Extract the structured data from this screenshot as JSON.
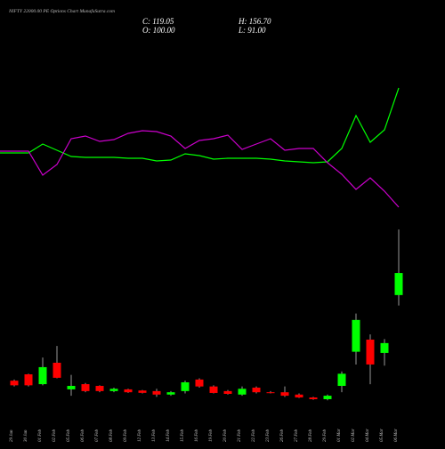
{
  "chart_data": {
    "type": "candlestick",
    "title": "NIFTY 22000.00 PE Options Chart MunafaSutra.com",
    "summary": {
      "close": "C: 119.05",
      "high": "H: 156.70",
      "open": "O: 100.00",
      "low": "L: 91.00"
    },
    "categories": [
      "29 Jan",
      "30 Jan",
      "01 Feb",
      "02 Feb",
      "05 Feb",
      "06 Feb",
      "07 Feb",
      "08 Feb",
      "09 Feb",
      "12 Feb",
      "13 Feb",
      "14 Feb",
      "15 Feb",
      "16 Feb",
      "19 Feb",
      "20 Feb",
      "21 Feb",
      "22 Feb",
      "23 Feb",
      "26 Feb",
      "27 Feb",
      "28 Feb",
      "29 Feb",
      "01 Mar",
      "02 Mar",
      "04 Mar",
      "05 Mar",
      "06 Mar"
    ],
    "open": [
      26,
      31.5,
      23,
      41.5,
      18.5,
      23,
      21.5,
      17,
      18.5,
      17.5,
      17,
      14,
      17,
      27,
      21,
      17,
      14,
      20,
      16,
      16,
      14,
      11.5,
      10,
      21.5,
      51,
      61.5,
      50,
      100
    ],
    "high": [
      27,
      32,
      46,
      56,
      31,
      24,
      22,
      20,
      19,
      18,
      19,
      17,
      26,
      28,
      22,
      18,
      21,
      21,
      17,
      21,
      15,
      12,
      14,
      34,
      84,
      66,
      62,
      156.7
    ],
    "low": [
      21,
      21,
      22,
      28,
      13,
      16,
      16,
      16,
      15.5,
      15,
      12,
      13,
      15,
      20,
      15,
      14,
      13,
      15,
      15,
      12,
      11,
      9.5,
      9,
      16,
      40,
      23,
      39,
      91
    ],
    "close": [
      22,
      22,
      37.7,
      28.5,
      21.5,
      17,
      17,
      19,
      16,
      15.5,
      14,
      16,
      24.6,
      21,
      15.4,
      14.6,
      19,
      16,
      15.4,
      13,
      11.5,
      10,
      13,
      32,
      78.5,
      40,
      58.5,
      119.05
    ],
    "up_color": "#00ff00",
    "down_color": "#ff0000",
    "ylim": [
      0,
      355
    ],
    "y2lim": [
      0,
      200
    ],
    "series": [
      {
        "color": "#00ff00",
        "axis": "y2",
        "values": [
          78,
          78,
          88,
          81,
          74,
          73,
          73,
          73,
          72,
          72,
          69,
          70,
          77,
          75,
          71,
          72,
          72,
          72,
          71,
          69,
          68,
          67,
          68,
          83,
          120,
          90,
          104,
          151
        ]
      },
      {
        "color": "#cc00cc",
        "axis": "y2",
        "values": [
          80,
          80,
          53,
          65,
          94,
          97,
          91,
          93,
          100,
          103,
          102,
          97,
          83,
          92,
          94,
          98,
          82,
          88,
          94,
          81,
          83,
          83,
          67,
          54,
          37,
          50,
          35,
          17
        ]
      }
    ]
  }
}
